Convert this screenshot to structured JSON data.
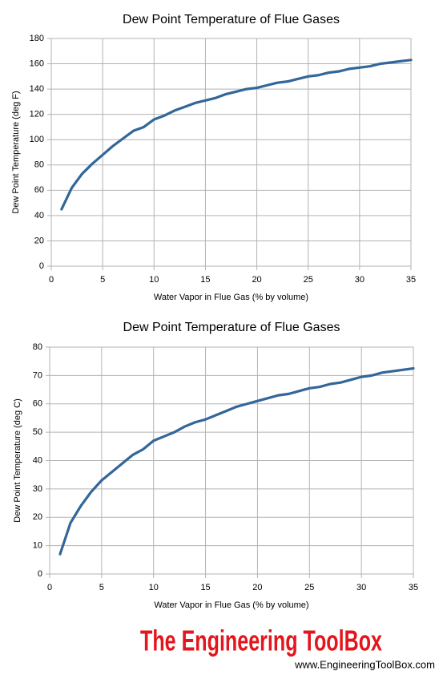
{
  "chart_data": [
    {
      "type": "line",
      "title": "Dew Point Temperature of Flue Gases",
      "x_label": "Water Vapor in Flue Gas (% by volume)",
      "y_label": "Dew Point Temperature (deg F)",
      "xlim": [
        0,
        35
      ],
      "xticks": [
        0,
        5,
        10,
        15,
        20,
        25,
        30,
        35
      ],
      "ylim": [
        0,
        180
      ],
      "yticks": [
        0,
        20,
        40,
        60,
        80,
        100,
        120,
        140,
        160,
        180
      ],
      "grid": true,
      "x": [
        1,
        2,
        3,
        4,
        5,
        6,
        7,
        8,
        9,
        10,
        11,
        12,
        13,
        14,
        15,
        16,
        17,
        18,
        19,
        20,
        21,
        22,
        23,
        24,
        25,
        26,
        27,
        28,
        29,
        30,
        31,
        32,
        33,
        34,
        35
      ],
      "series": [
        {
          "name": "Dew Point",
          "color": "#336699",
          "values": [
            45,
            62,
            73,
            81,
            88,
            95,
            101,
            107,
            110,
            116,
            119,
            123,
            126,
            129,
            131,
            133,
            136,
            138,
            140,
            141,
            143,
            145,
            146,
            148,
            150,
            151,
            153,
            154,
            156,
            157,
            158,
            160,
            161,
            162,
            163
          ]
        }
      ]
    },
    {
      "type": "line",
      "title": "Dew Point Temperature of Flue Gases",
      "x_label": "Water Vapor in Flue Gas (% by volume)",
      "y_label": "Dew Point Temperature (deg C)",
      "xlim": [
        0,
        35
      ],
      "xticks": [
        0,
        5,
        10,
        15,
        20,
        25,
        30,
        35
      ],
      "ylim": [
        0,
        80
      ],
      "yticks": [
        0,
        10,
        20,
        30,
        40,
        50,
        60,
        70,
        80
      ],
      "grid": true,
      "x": [
        1,
        2,
        3,
        4,
        5,
        6,
        7,
        8,
        9,
        10,
        11,
        12,
        13,
        14,
        15,
        16,
        17,
        18,
        19,
        20,
        21,
        22,
        23,
        24,
        25,
        26,
        27,
        28,
        29,
        30,
        31,
        32,
        33,
        34,
        35
      ],
      "series": [
        {
          "name": "Dew Point",
          "color": "#336699",
          "values": [
            7,
            18,
            24,
            29,
            33,
            36,
            39,
            42,
            44,
            47,
            48.5,
            50,
            52,
            53.5,
            54.5,
            56,
            57.5,
            59,
            60,
            61,
            62,
            63,
            63.5,
            64.5,
            65.5,
            66,
            67,
            67.5,
            68.5,
            69.5,
            70,
            71,
            71.5,
            72,
            72.5
          ]
        }
      ]
    }
  ],
  "logo": {
    "title": "The Engineering ToolBox",
    "url": "www.EngineeringToolBox.com"
  }
}
